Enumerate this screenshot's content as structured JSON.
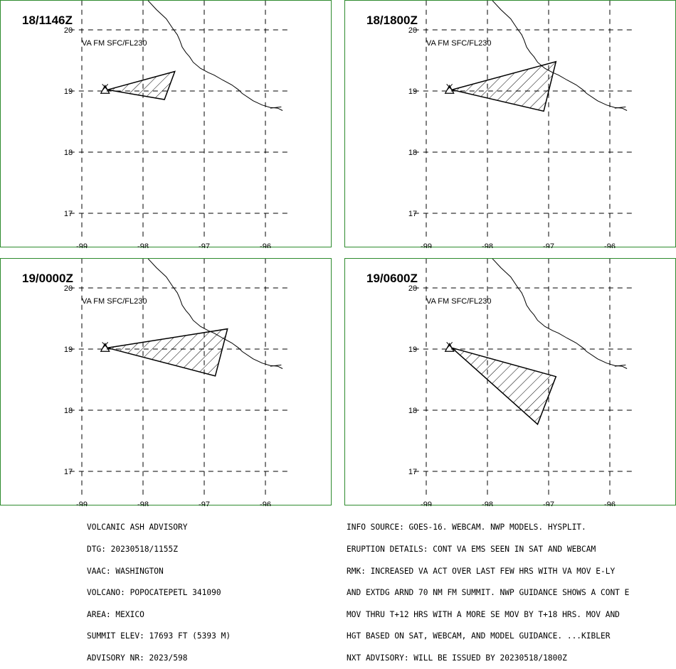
{
  "map_frame": {
    "lon_ticks": [
      -99,
      -98,
      -97,
      -96
    ],
    "lat_ticks": [
      17,
      18,
      19,
      20
    ],
    "tick_labels_lon": [
      "-99",
      "-98",
      "-97",
      "-96"
    ],
    "tick_labels_lat": [
      "17",
      "18",
      "19",
      "20"
    ],
    "volcano_symbol": "triangle-volcano-icon",
    "volcano_location": {
      "lat": 19.02,
      "lon": -98.62
    },
    "colors": {
      "frame": "#2e8b2e",
      "grid": "#000000",
      "ash_hatch": "#000000"
    }
  },
  "panels": [
    {
      "title": "18/1146Z",
      "layer_label": "VA FM SFC/FL230",
      "ash_polygon": [
        [
          -98.58,
          19.02
        ],
        [
          -97.48,
          19.32
        ],
        [
          -97.65,
          18.86
        ]
      ]
    },
    {
      "title": "18/1800Z",
      "layer_label": "VA FM SFC/FL230",
      "ash_polygon": [
        [
          -98.58,
          19.02
        ],
        [
          -96.88,
          19.48
        ],
        [
          -97.08,
          18.67
        ]
      ]
    },
    {
      "title": "19/0000Z",
      "layer_label": "VA FM SFC/FL230",
      "ash_polygon": [
        [
          -98.58,
          19.02
        ],
        [
          -96.62,
          19.33
        ],
        [
          -96.82,
          18.56
        ]
      ]
    },
    {
      "title": "19/0600Z",
      "layer_label": "VA FM SFC/FL230",
      "ash_polygon": [
        [
          -98.58,
          19.02
        ],
        [
          -96.88,
          18.55
        ],
        [
          -97.18,
          17.77
        ]
      ]
    }
  ],
  "advisory_left": {
    "lines": [
      "VOLCANIC ASH ADVISORY",
      "DTG: 20230518/1155Z",
      "VAAC: WASHINGTON",
      "VOLCANO: POPOCATEPETL 341090",
      "AREA: MEXICO",
      "SUMMIT ELEV: 17693 FT (5393 M)",
      "ADVISORY NR: 2023/598"
    ]
  },
  "advisory_right": {
    "lines": [
      "INFO SOURCE: GOES-16. WEBCAM. NWP MODELS. HYSPLIT.",
      "ERUPTION DETAILS: CONT VA EMS SEEN IN SAT AND WEBCAM",
      "RMK: INCREASED VA ACT OVER LAST FEW HRS WITH VA MOV E-LY",
      "AND EXTDG ARND 70 NM FM SUMMIT. NWP GUIDANCE SHOWS A CONT E",
      "MOV THRU T+12 HRS WITH A MORE SE MOV BY T+18 HRS. MOV AND",
      "HGT BASED ON SAT, WEBCAM, AND MODEL GUIDANCE. ...KIBLER",
      "NXT ADVISORY: WILL BE ISSUED BY 20230518/1800Z"
    ]
  }
}
